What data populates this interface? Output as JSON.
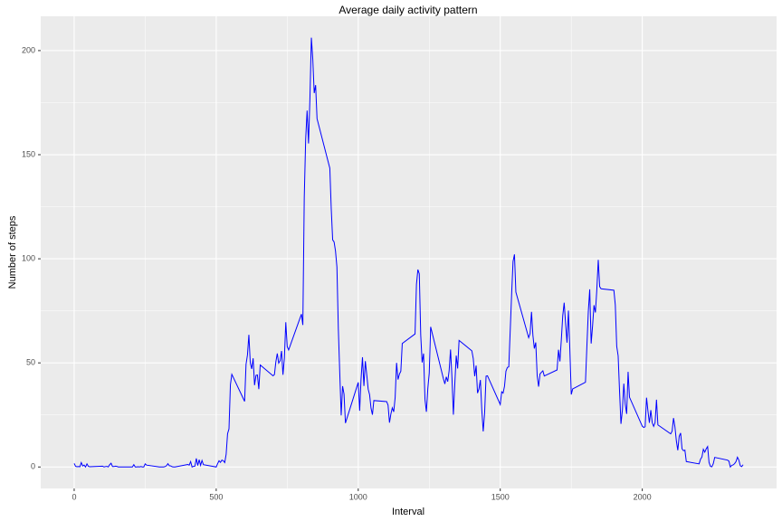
{
  "chart_data": {
    "type": "line",
    "title": "Average daily activity pattern",
    "x_label": "Interval",
    "y_label": "Number of steps",
    "x": [
      0,
      5,
      10,
      15,
      20,
      25,
      30,
      35,
      40,
      45,
      50,
      55,
      100,
      105,
      110,
      115,
      120,
      125,
      130,
      135,
      140,
      145,
      150,
      155,
      200,
      205,
      210,
      215,
      220,
      225,
      230,
      235,
      240,
      245,
      250,
      255,
      300,
      305,
      310,
      315,
      320,
      325,
      330,
      335,
      340,
      345,
      350,
      355,
      400,
      405,
      410,
      415,
      420,
      425,
      430,
      435,
      440,
      445,
      450,
      455,
      500,
      505,
      510,
      515,
      520,
      525,
      530,
      535,
      540,
      545,
      550,
      555,
      600,
      605,
      610,
      615,
      620,
      625,
      630,
      635,
      640,
      645,
      650,
      655,
      700,
      705,
      710,
      715,
      720,
      725,
      730,
      735,
      740,
      745,
      750,
      755,
      800,
      805,
      810,
      815,
      820,
      825,
      830,
      835,
      840,
      845,
      850,
      855,
      900,
      905,
      910,
      915,
      920,
      925,
      930,
      935,
      940,
      945,
      950,
      955,
      1000,
      1005,
      1010,
      1015,
      1020,
      1025,
      1030,
      1035,
      1040,
      1045,
      1050,
      1055,
      1100,
      1105,
      1110,
      1115,
      1120,
      1125,
      1130,
      1135,
      1140,
      1145,
      1150,
      1155,
      1200,
      1205,
      1210,
      1215,
      1220,
      1225,
      1230,
      1235,
      1240,
      1245,
      1250,
      1255,
      1300,
      1305,
      1310,
      1315,
      1320,
      1325,
      1330,
      1335,
      1340,
      1345,
      1350,
      1355,
      1400,
      1405,
      1410,
      1415,
      1420,
      1425,
      1430,
      1435,
      1440,
      1445,
      1450,
      1455,
      1500,
      1505,
      1510,
      1515,
      1520,
      1525,
      1530,
      1535,
      1540,
      1545,
      1550,
      1555,
      1600,
      1605,
      1610,
      1615,
      1620,
      1625,
      1630,
      1635,
      1640,
      1645,
      1650,
      1655,
      1700,
      1705,
      1710,
      1715,
      1720,
      1725,
      1730,
      1735,
      1740,
      1745,
      1750,
      1755,
      1800,
      1805,
      1810,
      1815,
      1820,
      1825,
      1830,
      1835,
      1840,
      1845,
      1850,
      1855,
      1900,
      1905,
      1910,
      1915,
      1920,
      1925,
      1930,
      1935,
      1940,
      1945,
      1950,
      1955,
      2000,
      2005,
      2010,
      2015,
      2020,
      2025,
      2030,
      2035,
      2040,
      2045,
      2050,
      2055,
      2100,
      2105,
      2110,
      2115,
      2120,
      2125,
      2130,
      2135,
      2140,
      2145,
      2150,
      2155,
      2200,
      2205,
      2210,
      2215,
      2220,
      2225,
      2230,
      2235,
      2240,
      2245,
      2250,
      2255,
      2300,
      2305,
      2310,
      2315,
      2320,
      2325,
      2330,
      2335,
      2340,
      2345,
      2350,
      2355
    ],
    "values": [
      1.7,
      0.3,
      0.1,
      0.2,
      0.1,
      2.1,
      0.5,
      0.9,
      0,
      1.5,
      0.3,
      0.1,
      0.4,
      0,
      0.2,
      0.3,
      0,
      1.1,
      1.8,
      0.2,
      0.2,
      0.4,
      0.3,
      0,
      0,
      0,
      1.1,
      0,
      0,
      0.1,
      0,
      0.2,
      0,
      0,
      1.5,
      0.9,
      0,
      0,
      0,
      0,
      0.2,
      0.6,
      1.6,
      0.6,
      0.5,
      0.1,
      0,
      0,
      1.2,
      0.9,
      2.6,
      0,
      0.3,
      0.4,
      4.1,
      0.7,
      3.5,
      0.8,
      3.1,
      1.1,
      0,
      1.6,
      3,
      2.2,
      3.3,
      3,
      2.1,
      6.1,
      16,
      18.3,
      39.5,
      44.5,
      31.5,
      49.3,
      53.8,
      63.5,
      50,
      47.1,
      52.2,
      39.3,
      44,
      44.2,
      37.4,
      49,
      43.8,
      44.4,
      50.5,
      54.5,
      49.9,
      51,
      55.7,
      44.3,
      52.3,
      69.5,
      57.8,
      56.2,
      73.4,
      68.2,
      129.4,
      157.5,
      171.2,
      155.4,
      177.3,
      206.2,
      195.9,
      179.6,
      183.4,
      167.3,
      143.5,
      124,
      109.1,
      108.1,
      103.7,
      96,
      66.2,
      45.2,
      24.8,
      38.8,
      35,
      21.1,
      40.6,
      27,
      42.4,
      52.7,
      38.9,
      50.8,
      44.3,
      37.4,
      34.7,
      28.3,
      25.1,
      31.9,
      31.4,
      29.7,
      21.3,
      25.5,
      28.4,
      26.5,
      33.4,
      50,
      42,
      44.6,
      46,
      59.3,
      63.9,
      87.7,
      94.8,
      92.8,
      63.4,
      50.2,
      54.5,
      32.4,
      26.5,
      37.7,
      45.1,
      67.3,
      42.3,
      39.9,
      43.3,
      41,
      46.2,
      56.4,
      42.8,
      25.1,
      40,
      53.5,
      47.3,
      60.8,
      55.8,
      52,
      43.6,
      48.7,
      35.5,
      37.5,
      41.8,
      27.5,
      17.1,
      26.1,
      43.6,
      43.8,
      30,
      36.1,
      35.5,
      38.8,
      46,
      47.8,
      48.1,
      65.3,
      82.9,
      98.7,
      102.1,
      84,
      62.1,
      64.1,
      74.5,
      63.2,
      56.9,
      59.8,
      43.9,
      38.6,
      44.7,
      45.5,
      46.2,
      43.7,
      46.6,
      56.3,
      50.7,
      61.2,
      72.7,
      78.9,
      68.9,
      59.7,
      75.1,
      56.5,
      34.8,
      37.5,
      40.7,
      58,
      74.7,
      85.3,
      59.3,
      67.8,
      77.7,
      74.2,
      85.3,
      99.5,
      86.6,
      85.6,
      84.9,
      77.8,
      58,
      53.4,
      36.3,
      20.7,
      27.4,
      40,
      30.2,
      25.5,
      45.7,
      33.5,
      19.6,
      19,
      19.3,
      33.3,
      26.8,
      21.2,
      27.3,
      21.3,
      19.5,
      21.3,
      32.3,
      20.2,
      15.9,
      17.2,
      23.5,
      19.2,
      12.5,
      8,
      14.7,
      16.3,
      8.7,
      7.8,
      8.1,
      2.6,
      1.5,
      3.7,
      4.8,
      8.5,
      7.1,
      8.7,
      9.8,
      2.2,
      0.3,
      0.1,
      1.6,
      4.6,
      3.3,
      2.8,
      0,
      0.8,
      1,
      1.6,
      2.6,
      4.7,
      3.3,
      0.6,
      0.2,
      1.1
    ],
    "color": "#0000ff",
    "xlim": [
      -117.75,
      2472.75
    ],
    "xticks": [
      0,
      500,
      1000,
      1500,
      2000
    ],
    "ylim": [
      -10.31,
      216.48
    ],
    "yticks": [
      0,
      50,
      100,
      150,
      200
    ],
    "grid": true
  }
}
